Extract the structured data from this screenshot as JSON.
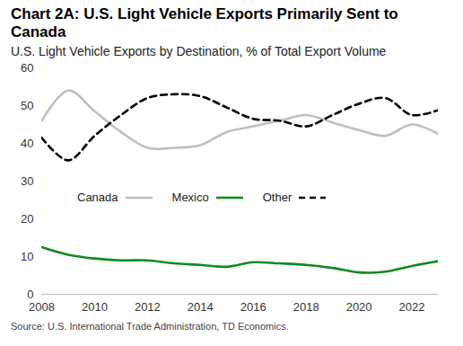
{
  "chart_data": {
    "type": "line",
    "title": "Chart 2A: U.S. Light Vehicle Exports Primarily Sent to Canada",
    "subtitle": "U.S. Light Vehicle Exports by Destination, % of Total Export Volume",
    "caption": "Source: U.S. International Trade Administration, TD Economics.",
    "x": [
      2008,
      2009,
      2010,
      2011,
      2012,
      2013,
      2014,
      2015,
      2016,
      2017,
      2018,
      2019,
      2020,
      2021,
      2022,
      2023
    ],
    "series": [
      {
        "name": "Canada",
        "color": "#bfbfbf",
        "line_style": "solid",
        "values": [
          46,
          54,
          48.5,
          43,
          38.8,
          38.8,
          39.5,
          43,
          44.5,
          46,
          47.5,
          45.5,
          43.5,
          42,
          45,
          42.5
        ]
      },
      {
        "name": "Mexico",
        "color": "#118a1e",
        "line_style": "solid",
        "values": [
          12.5,
          10.5,
          9.5,
          9,
          9,
          8.2,
          7.8,
          7.3,
          8.5,
          8.2,
          7.8,
          7,
          5.8,
          6,
          7.5,
          8.8
        ]
      },
      {
        "name": "Other",
        "color": "#000000",
        "line_style": "dashed",
        "values": [
          41.5,
          35.5,
          42,
          47.5,
          52,
          53,
          52.5,
          49.5,
          46.5,
          46,
          44.5,
          47.5,
          50.5,
          52,
          47.5,
          48.8
        ]
      }
    ],
    "xlim": [
      2008,
      2023
    ],
    "ylim": [
      0,
      60
    ],
    "xticks": [
      2008,
      2010,
      2012,
      2014,
      2016,
      2018,
      2020,
      2022
    ],
    "yticks": [
      0,
      10,
      20,
      30,
      40,
      50,
      60
    ],
    "grid": false,
    "legend": "center"
  }
}
